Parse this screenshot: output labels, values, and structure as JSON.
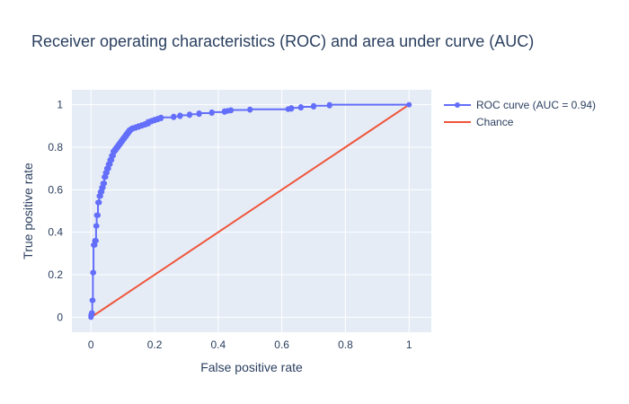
{
  "chart_data": {
    "type": "line",
    "title": "Receiver operating characteristics (ROC) and area under curve (AUC)",
    "xlabel": "False positive rate",
    "ylabel": "True positive rate",
    "xlim": [
      -0.06,
      1.07
    ],
    "ylim": [
      -0.07,
      1.07
    ],
    "grid": true,
    "legend_position": "top-right outside plot",
    "xticks": [
      0,
      0.2,
      0.4,
      0.6,
      0.8,
      1
    ],
    "yticks": [
      0,
      0.2,
      0.4,
      0.6,
      0.8,
      1
    ],
    "xtick_labels": [
      "0",
      "0.2",
      "0.4",
      "0.6",
      "0.8",
      "1"
    ],
    "ytick_labels": [
      "0",
      "0.2",
      "0.4",
      "0.6",
      "0.8",
      "1"
    ],
    "colors": {
      "plot_background": "#e5ecf6",
      "grid": "#ffffff",
      "text": "#2a3f5f"
    },
    "series": [
      {
        "name": "ROC curve (AUC = 0.94)",
        "mode": "lines+markers",
        "color": "#636efa",
        "x": [
          0,
          0,
          0.002,
          0.002,
          0.004,
          0.004,
          0.006,
          0.006,
          0.008,
          0.008,
          0.012,
          0.012,
          0.016,
          0.016,
          0.018,
          0.018,
          0.022,
          0.022,
          0.026,
          0.026,
          0.03,
          0.03,
          0.034,
          0.034,
          0.038,
          0.038,
          0.042,
          0.042,
          0.046,
          0.046,
          0.05,
          0.05,
          0.055,
          0.055,
          0.06,
          0.06,
          0.065,
          0.065,
          0.07,
          0.07,
          0.075,
          0.075,
          0.08,
          0.08,
          0.085,
          0.085,
          0.09,
          0.09,
          0.095,
          0.095,
          0.1,
          0.1,
          0.105,
          0.105,
          0.11,
          0.11,
          0.115,
          0.115,
          0.12,
          0.12,
          0.125,
          0.125,
          0.13,
          0.13,
          0.14,
          0.14,
          0.15,
          0.15,
          0.16,
          0.16,
          0.17,
          0.17,
          0.18,
          0.18,
          0.19,
          0.19,
          0.2,
          0.2,
          0.21,
          0.21,
          0.22,
          0.22,
          0.26,
          0.26,
          0.28,
          0.28,
          0.31,
          0.31,
          0.34,
          0.34,
          0.38,
          0.38,
          0.42,
          0.42,
          0.43,
          0.43,
          0.44,
          0.44,
          0.5,
          0.5,
          0.62,
          0.62,
          0.63,
          0.63,
          0.66,
          0.66,
          0.7,
          0.7,
          0.75,
          0.75,
          1
        ],
        "y": [
          0,
          0.01,
          0.01,
          0.02,
          0.02,
          0.08,
          0.08,
          0.21,
          0.21,
          0.34,
          0.34,
          0.36,
          0.36,
          0.43,
          0.43,
          0.48,
          0.48,
          0.54,
          0.54,
          0.57,
          0.57,
          0.59,
          0.59,
          0.61,
          0.61,
          0.63,
          0.63,
          0.66,
          0.66,
          0.68,
          0.68,
          0.7,
          0.7,
          0.72,
          0.72,
          0.74,
          0.74,
          0.76,
          0.76,
          0.78,
          0.78,
          0.79,
          0.79,
          0.8,
          0.8,
          0.81,
          0.81,
          0.82,
          0.82,
          0.83,
          0.83,
          0.84,
          0.84,
          0.85,
          0.85,
          0.86,
          0.86,
          0.87,
          0.87,
          0.88,
          0.88,
          0.885,
          0.885,
          0.89,
          0.89,
          0.895,
          0.895,
          0.9,
          0.9,
          0.905,
          0.905,
          0.91,
          0.91,
          0.92,
          0.92,
          0.925,
          0.925,
          0.93,
          0.93,
          0.935,
          0.935,
          0.94,
          0.94,
          0.945,
          0.945,
          0.95,
          0.95,
          0.955,
          0.955,
          0.96,
          0.96,
          0.965,
          0.965,
          0.97,
          0.97,
          0.972,
          0.972,
          0.975,
          0.975,
          0.978,
          0.978,
          0.98,
          0.98,
          0.985,
          0.985,
          0.99,
          0.99,
          0.995,
          0.995,
          1.0,
          1.0
        ]
      },
      {
        "name": "Chance",
        "mode": "lines",
        "color": "#ef553b",
        "x": [
          0,
          1
        ],
        "y": [
          0,
          1
        ]
      }
    ]
  }
}
